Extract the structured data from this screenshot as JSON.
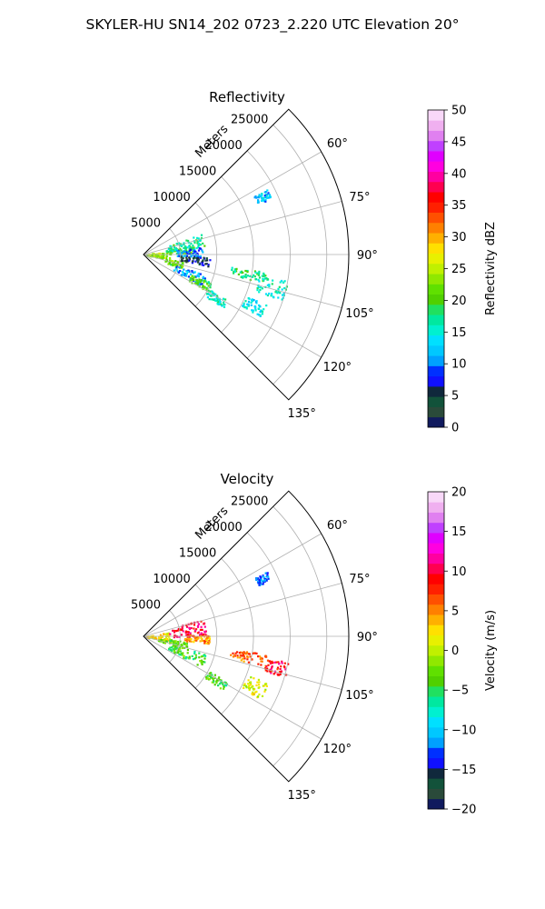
{
  "figure": {
    "suptitle": "SKYLER-HU  SN14_202  0723_2.220 UTC Elevation 20°"
  },
  "chart_data": [
    {
      "type": "scatter",
      "subtype": "polar-sector radar image",
      "title": "Reflectivity",
      "radial_label": "Meters",
      "range_ticks": [
        5000,
        10000,
        15000,
        20000,
        25000
      ],
      "range_max": 28000,
      "azimuth_range_deg": [
        45,
        135
      ],
      "azimuth_ticks": [
        "60°",
        "75°",
        "90°",
        "105°",
        "120°",
        "135°"
      ],
      "colorbar": {
        "label": "Reflectivity dBZ",
        "min": 0,
        "max": 50,
        "ticks": [
          "0",
          "5",
          "10",
          "15",
          "20",
          "25",
          "30",
          "35",
          "40",
          "45",
          "50"
        ],
        "colors": [
          "#101a5e",
          "#2a4a3a",
          "#12523a",
          "#10283c",
          "#1010ff",
          "#0030ff",
          "#00a0ff",
          "#00c8ff",
          "#00e0ff",
          "#00f0d0",
          "#00e8a0",
          "#20e060",
          "#50d000",
          "#60e000",
          "#90e800",
          "#c0f000",
          "#e8f000",
          "#ffe000",
          "#ffb000",
          "#ff8000",
          "#ff5000",
          "#ff2000",
          "#ff0000",
          "#ff0050",
          "#ff00a0",
          "#ff00e0",
          "#e000ff",
          "#c040ff",
          "#e080f0",
          "#f0b0f0",
          "#f8d8f8"
        ]
      },
      "echo_regions": [
        {
          "az": [
            80,
            100
          ],
          "r": [
            300,
            3500
          ],
          "value": 23
        },
        {
          "az": [
            78,
            88
          ],
          "r": [
            3500,
            7000
          ],
          "value": 21
        },
        {
          "az": [
            70,
            82
          ],
          "r": [
            3000,
            8500
          ],
          "value": 17
        },
        {
          "az": [
            82,
            92
          ],
          "r": [
            4500,
            8000
          ],
          "value": 10
        },
        {
          "az": [
            92,
            100
          ],
          "r": [
            5000,
            9000
          ],
          "value": 5
        },
        {
          "az": [
            100,
            110
          ],
          "r": [
            3000,
            5500
          ],
          "value": 22
        },
        {
          "az": [
            108,
            118
          ],
          "r": [
            4500,
            9000
          ],
          "value": 11
        },
        {
          "az": [
            112,
            120
          ],
          "r": [
            7000,
            10000
          ],
          "value": 20
        },
        {
          "az": [
            98,
            103
          ],
          "r": [
            12000,
            17000
          ],
          "value": 18
        },
        {
          "az": [
            100,
            108
          ],
          "r": [
            16000,
            20000
          ],
          "value": 16
        },
        {
          "az": [
            112,
            118
          ],
          "r": [
            15000,
            18000
          ],
          "value": 14
        },
        {
          "az": [
            118,
            124
          ],
          "r": [
            10000,
            13000
          ],
          "value": 16
        },
        {
          "az": [
            62,
            66
          ],
          "r": [
            17000,
            19000
          ],
          "value": 12
        }
      ]
    },
    {
      "type": "scatter",
      "subtype": "polar-sector radar image",
      "title": "Velocity",
      "radial_label": "Meters",
      "range_ticks": [
        5000,
        10000,
        15000,
        20000,
        25000
      ],
      "range_max": 28000,
      "azimuth_range_deg": [
        45,
        135
      ],
      "azimuth_ticks": [
        "60°",
        "75°",
        "90°",
        "105°",
        "120°",
        "135°"
      ],
      "colorbar": {
        "label": "Velocity (m/s)",
        "min": -20,
        "max": 20,
        "ticks": [
          "−20",
          "−15",
          "−10",
          "−5",
          "0",
          "5",
          "10",
          "15",
          "20"
        ],
        "colors": [
          "#101a5e",
          "#2a4a3a",
          "#12523a",
          "#10283c",
          "#1010ff",
          "#0030ff",
          "#00a0ff",
          "#00c8ff",
          "#00e0ff",
          "#00f0d0",
          "#00e8a0",
          "#20e060",
          "#50d000",
          "#60e000",
          "#90e800",
          "#c0f000",
          "#e8f000",
          "#ffe000",
          "#ffb000",
          "#ff8000",
          "#ff5000",
          "#ff2000",
          "#ff0000",
          "#ff0050",
          "#ff00a0",
          "#ff00e0",
          "#e000ff",
          "#c040ff",
          "#e080f0",
          "#f0b0f0",
          "#f8d8f8"
        ]
      },
      "echo_regions": [
        {
          "az": [
            80,
            100
          ],
          "r": [
            300,
            3500
          ],
          "value": 2
        },
        {
          "az": [
            72,
            90
          ],
          "r": [
            3500,
            8500
          ],
          "value": 10
        },
        {
          "az": [
            88,
            96
          ],
          "r": [
            5500,
            9000
          ],
          "value": 5
        },
        {
          "az": [
            96,
            106
          ],
          "r": [
            2000,
            6000
          ],
          "value": -3
        },
        {
          "az": [
            106,
            118
          ],
          "r": [
            3500,
            9000
          ],
          "value": -4
        },
        {
          "az": [
            98,
            104
          ],
          "r": [
            12000,
            17000
          ],
          "value": 6
        },
        {
          "az": [
            100,
            106
          ],
          "r": [
            17000,
            20000
          ],
          "value": 9
        },
        {
          "az": [
            110,
            118
          ],
          "r": [
            15000,
            18000
          ],
          "value": 1
        },
        {
          "az": [
            118,
            124
          ],
          "r": [
            10000,
            13000
          ],
          "value": -4
        },
        {
          "az": [
            62,
            66
          ],
          "r": [
            17000,
            19000
          ],
          "value": -12
        }
      ]
    }
  ]
}
